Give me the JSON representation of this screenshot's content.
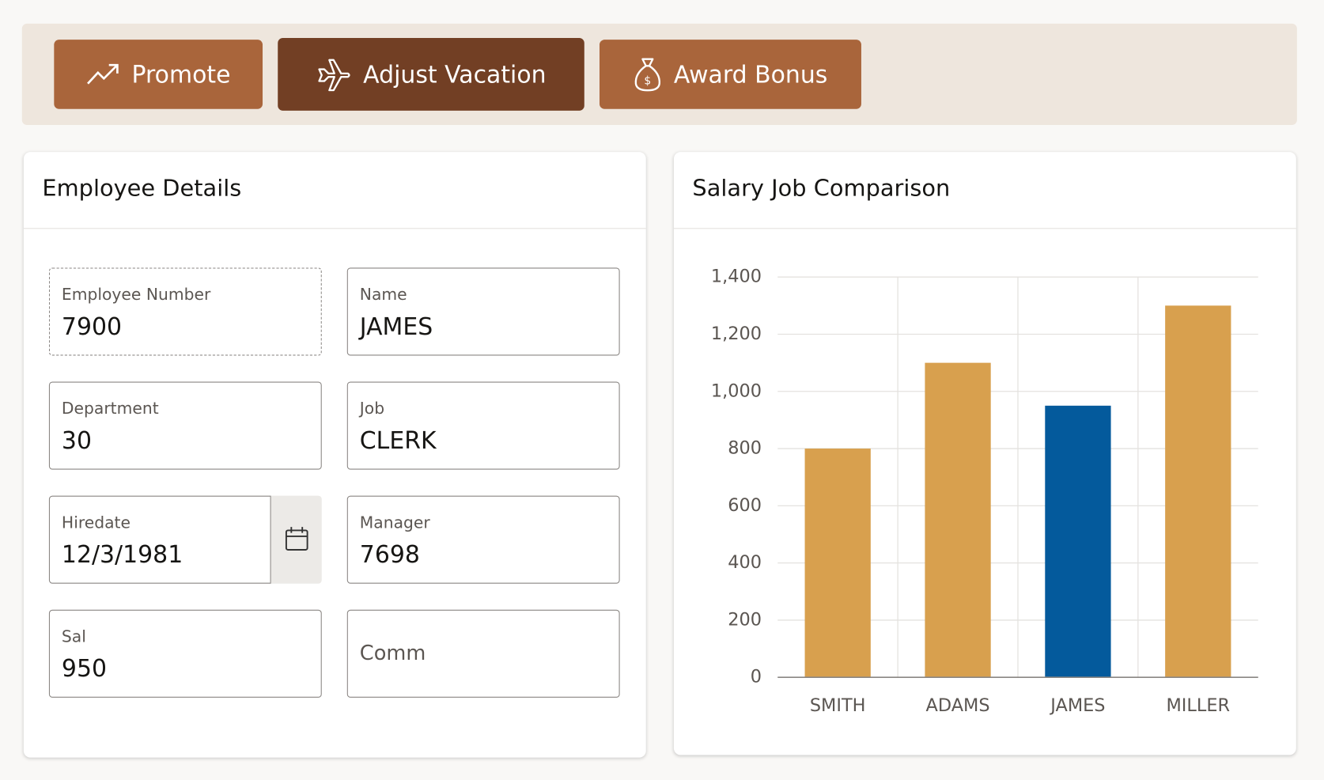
{
  "toolbar": {
    "buttons": [
      "Promote",
      "Adjust Vacation",
      "Award Bonus"
    ]
  },
  "employee_details": {
    "title": "Employee Details",
    "fields": [
      {
        "label": "Employee Number",
        "value": "7900"
      },
      {
        "label": "Name",
        "value": "JAMES"
      },
      {
        "label": "Department",
        "value": "30"
      },
      {
        "label": "Job",
        "value": "CLERK"
      },
      {
        "label": "Hiredate",
        "value": "12/3/1981"
      },
      {
        "label": "Manager",
        "value": "7698"
      },
      {
        "label": "Sal",
        "value": "950"
      },
      {
        "label": "Comm"
      }
    ]
  },
  "chart_data": {
    "type": "bar",
    "title": "Salary Job Comparison",
    "categories": [
      "SMITH",
      "ADAMS",
      "JAMES",
      "MILLER"
    ],
    "values": [
      800,
      1100,
      950,
      1300
    ],
    "colors": [
      "#d8a04e",
      "#d8a04e",
      "#045a9c",
      "#d8a04e"
    ],
    "ylim": [
      0,
      1400
    ],
    "yticks": [
      0,
      200,
      400,
      600,
      800,
      {
        "value": 1000,
        "label": "1,000"
      },
      {
        "value": 1200,
        "label": "1,200"
      },
      {
        "value": 1400,
        "label": "1,400"
      }
    ],
    "grid": true
  }
}
